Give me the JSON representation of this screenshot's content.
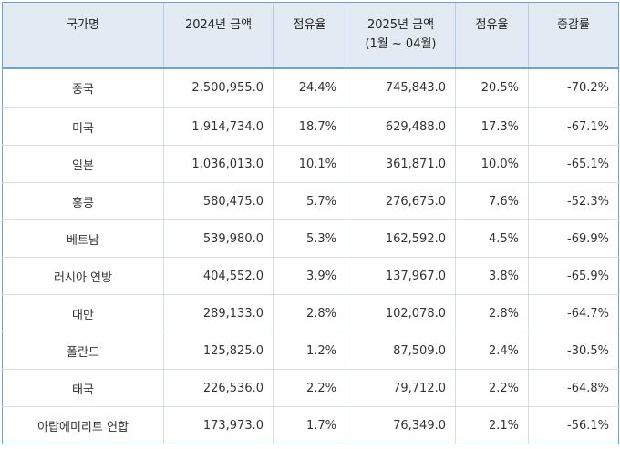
{
  "table": {
    "headers": [
      {
        "line1": "국가명",
        "line2": ""
      },
      {
        "line1": "2024년 금액",
        "line2": ""
      },
      {
        "line1": "점유율",
        "line2": ""
      },
      {
        "line1": "2025년 금액",
        "line2": "(1월 ~ 04월)"
      },
      {
        "line1": "점유율",
        "line2": ""
      },
      {
        "line1": "증감률",
        "line2": ""
      }
    ],
    "rows": [
      [
        "중국",
        "2,500,955.0",
        "24.4%",
        "745,843.0",
        "20.5%",
        "-70.2%"
      ],
      [
        "미국",
        "1,914,734.0",
        "18.7%",
        "629,488.0",
        "17.3%",
        "-67.1%"
      ],
      [
        "일본",
        "1,036,013.0",
        "10.1%",
        "361,871.0",
        "10.0%",
        "-65.1%"
      ],
      [
        "홍콩",
        "580,475.0",
        "5.7%",
        "276,675.0",
        "7.6%",
        "-52.3%"
      ],
      [
        "베트남",
        "539,980.0",
        "5.3%",
        "162,592.0",
        "4.5%",
        "-69.9%"
      ],
      [
        "러시아 연방",
        "404,552.0",
        "3.9%",
        "137,967.0",
        "3.8%",
        "-65.9%"
      ],
      [
        "대만",
        "289,133.0",
        "2.8%",
        "102,078.0",
        "2.8%",
        "-64.7%"
      ],
      [
        "폴란드",
        "125,825.0",
        "1.2%",
        "87,509.0",
        "2.4%",
        "-30.5%"
      ],
      [
        "태국",
        "226,536.0",
        "2.2%",
        "79,712.0",
        "2.2%",
        "-64.8%"
      ],
      [
        "아랍에미리트 연합",
        "173,973.0",
        "1.7%",
        "76,349.0",
        "2.1%",
        "-56.1%"
      ]
    ]
  },
  "colors": {
    "header_bg": "#e2eaf4",
    "accent_border": "#6fa3cf",
    "row_border": "#d7dde4",
    "text": "#333333"
  }
}
